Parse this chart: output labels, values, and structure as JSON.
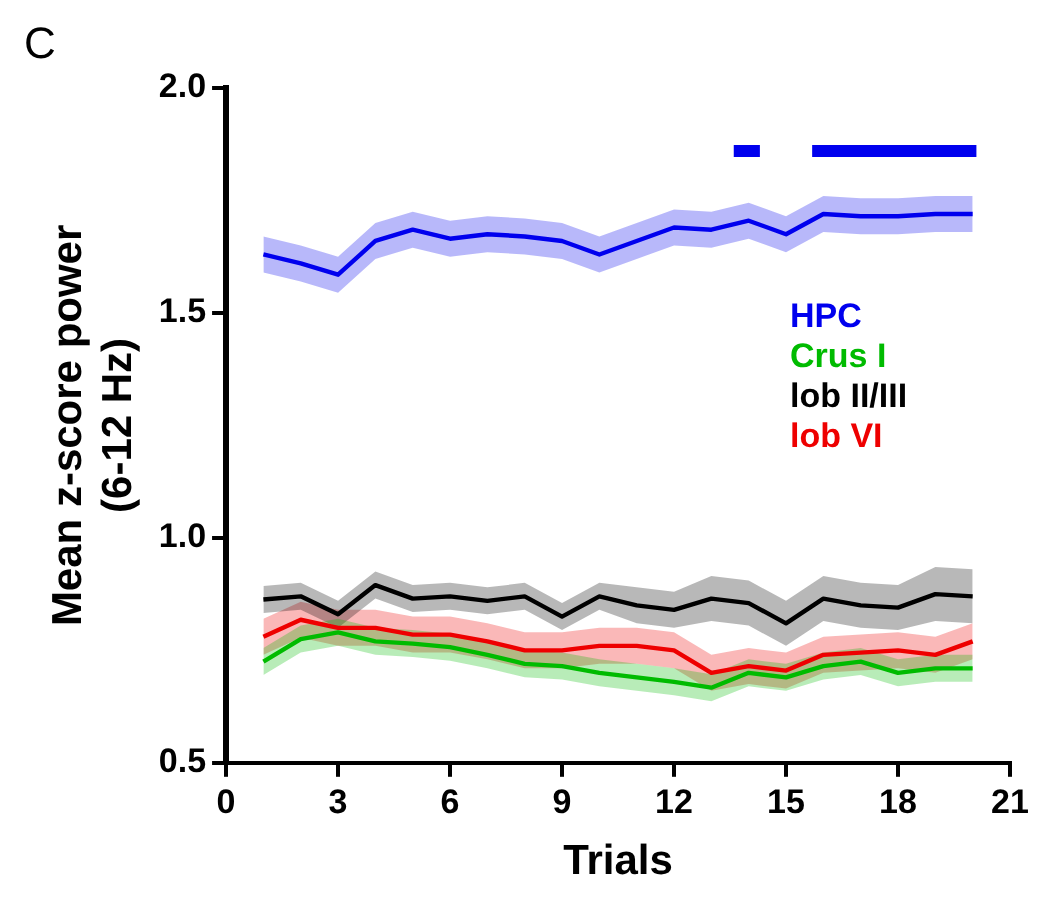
{
  "chart_data": {
    "type": "line",
    "title": "C",
    "xlabel": "Trials",
    "ylabel": "Mean z-score power\n(6-12 Hz)",
    "x": [
      1,
      2,
      3,
      4,
      5,
      6,
      7,
      8,
      9,
      10,
      11,
      12,
      13,
      14,
      15,
      16,
      17,
      18,
      19,
      20
    ],
    "series": [
      {
        "name": "HPC",
        "color": "#0000ee",
        "values": [
          1.63,
          1.61,
          1.585,
          1.66,
          1.685,
          1.665,
          1.675,
          1.67,
          1.66,
          1.63,
          1.66,
          1.69,
          1.685,
          1.705,
          1.675,
          1.72,
          1.715,
          1.715,
          1.72,
          1.72
        ],
        "lower": [
          1.59,
          1.57,
          1.545,
          1.62,
          1.645,
          1.625,
          1.635,
          1.63,
          1.62,
          1.59,
          1.62,
          1.65,
          1.645,
          1.665,
          1.635,
          1.68,
          1.675,
          1.675,
          1.68,
          1.68
        ],
        "upper": [
          1.67,
          1.65,
          1.625,
          1.7,
          1.725,
          1.705,
          1.715,
          1.71,
          1.7,
          1.67,
          1.7,
          1.73,
          1.725,
          1.745,
          1.715,
          1.76,
          1.755,
          1.755,
          1.76,
          1.76
        ]
      },
      {
        "name": "Crus I",
        "color": "#00bb00",
        "values": [
          0.725,
          0.775,
          0.79,
          0.77,
          0.765,
          0.757,
          0.74,
          0.72,
          0.715,
          0.7,
          0.69,
          0.68,
          0.667,
          0.7,
          0.69,
          0.715,
          0.725,
          0.7,
          0.71,
          0.71
        ],
        "lower": [
          0.695,
          0.745,
          0.76,
          0.74,
          0.735,
          0.727,
          0.71,
          0.69,
          0.685,
          0.67,
          0.66,
          0.65,
          0.637,
          0.67,
          0.66,
          0.685,
          0.695,
          0.67,
          0.68,
          0.68
        ],
        "upper": [
          0.755,
          0.805,
          0.82,
          0.8,
          0.795,
          0.787,
          0.77,
          0.75,
          0.745,
          0.73,
          0.72,
          0.71,
          0.697,
          0.73,
          0.72,
          0.745,
          0.755,
          0.73,
          0.74,
          0.74
        ]
      },
      {
        "name": "lob II/III",
        "color": "#000000",
        "values": [
          0.863,
          0.87,
          0.83,
          0.895,
          0.865,
          0.87,
          0.86,
          0.87,
          0.825,
          0.87,
          0.85,
          0.84,
          0.865,
          0.855,
          0.81,
          0.865,
          0.85,
          0.845,
          0.875,
          0.87
        ],
        "lower": [
          0.833,
          0.84,
          0.8,
          0.865,
          0.835,
          0.84,
          0.83,
          0.84,
          0.795,
          0.84,
          0.81,
          0.8,
          0.815,
          0.805,
          0.76,
          0.815,
          0.8,
          0.795,
          0.815,
          0.81
        ],
        "upper": [
          0.893,
          0.9,
          0.86,
          0.925,
          0.895,
          0.9,
          0.89,
          0.9,
          0.855,
          0.9,
          0.89,
          0.88,
          0.915,
          0.905,
          0.86,
          0.915,
          0.9,
          0.895,
          0.935,
          0.93
        ]
      },
      {
        "name": "lob VI",
        "color": "#ee0000",
        "values": [
          0.78,
          0.818,
          0.8,
          0.8,
          0.785,
          0.785,
          0.77,
          0.75,
          0.75,
          0.76,
          0.76,
          0.75,
          0.7,
          0.715,
          0.705,
          0.74,
          0.745,
          0.75,
          0.74,
          0.77
        ],
        "lower": [
          0.74,
          0.778,
          0.76,
          0.76,
          0.745,
          0.745,
          0.73,
          0.71,
          0.71,
          0.72,
          0.72,
          0.71,
          0.66,
          0.675,
          0.665,
          0.7,
          0.705,
          0.71,
          0.7,
          0.73
        ],
        "upper": [
          0.82,
          0.858,
          0.84,
          0.84,
          0.825,
          0.825,
          0.81,
          0.79,
          0.79,
          0.8,
          0.8,
          0.79,
          0.74,
          0.755,
          0.745,
          0.78,
          0.785,
          0.79,
          0.78,
          0.81
        ]
      },
      {
        "type": "line",
        "color": "#0000ee",
        "x": [
          13.6,
          14.3
        ],
        "values": [
          1.86,
          1.86
        ]
      },
      {
        "type": "line",
        "color": "#0000ee",
        "x": [
          15.7,
          20.1
        ],
        "values": [
          1.86,
          1.86
        ]
      }
    ],
    "xlim": [
      0,
      21
    ],
    "xticks": [
      0,
      3,
      6,
      9,
      12,
      15,
      18,
      21
    ],
    "ylim": [
      0.5,
      2.0
    ],
    "yticks": [
      {
        "value": 0.5,
        "label": "0.5"
      },
      {
        "value": 1,
        "label": "1.0"
      },
      {
        "value": 1.5,
        "label": "1.5"
      },
      {
        "value": 2,
        "label": "2.0"
      }
    ],
    "legend": "right",
    "marker": "none",
    "line_style": "solid",
    "grid": false
  }
}
